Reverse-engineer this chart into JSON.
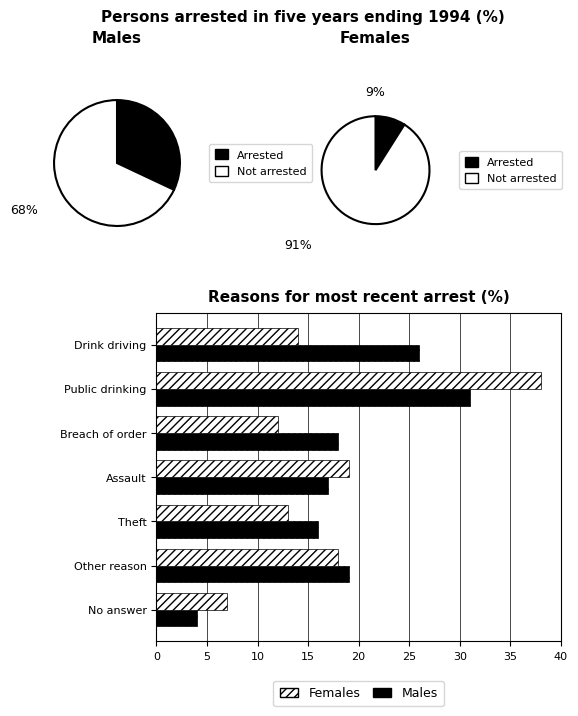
{
  "title_pie": "Persons arrested in five years ending 1994 (%)",
  "pie_male_title": "Males",
  "pie_female_title": "Females",
  "male_arrested": 32,
  "male_not_arrested": 68,
  "female_arrested": 9,
  "female_not_arrested": 91,
  "pie_colors_male": [
    "#000000",
    "#ffffff"
  ],
  "pie_colors_female": [
    "#000000",
    "#ffffff"
  ],
  "pie_labels": [
    "Arrested",
    "Not arrested"
  ],
  "bar_title": "Reasons for most recent arrest (%)",
  "categories": [
    "Drink driving",
    "Public drinking",
    "Breach of order",
    "Assault",
    "Theft",
    "Other reason",
    "No answer"
  ],
  "females": [
    14,
    38,
    12,
    19,
    13,
    18,
    7
  ],
  "males": [
    26,
    31,
    18,
    17,
    16,
    19,
    4
  ],
  "xlim": [
    0,
    40
  ],
  "xticks": [
    0,
    5,
    10,
    15,
    20,
    25,
    30,
    35,
    40
  ]
}
